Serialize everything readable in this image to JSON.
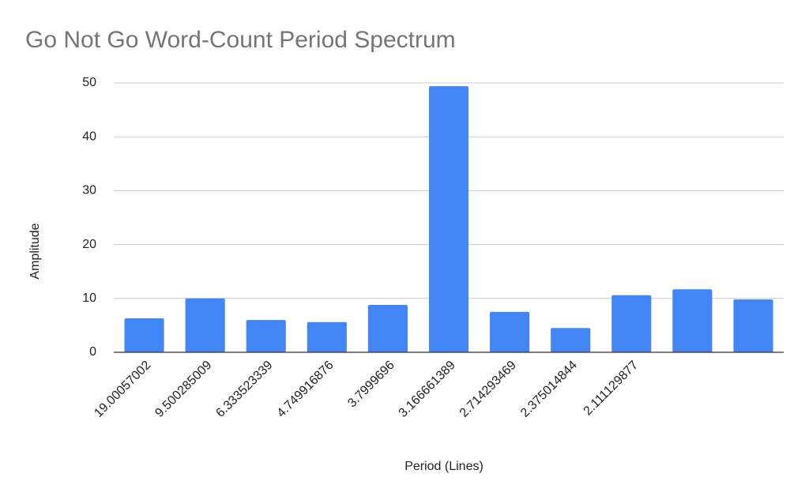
{
  "chart_data": {
    "type": "bar",
    "title": "Go Not Go Word-Count Period Spectrum",
    "x_label": "Period (Lines)",
    "y_label": "Amplitude",
    "categories": [
      "19.00057002",
      "9.500285009",
      "6.333523339",
      "4.749916876",
      "3.7999696",
      "3.166661389",
      "2.714293469",
      "2.375014844",
      "2.111129877",
      null,
      null
    ],
    "values": [
      6.3,
      10.0,
      6.0,
      5.6,
      8.8,
      49.4,
      7.5,
      4.5,
      10.6,
      11.7,
      9.8
    ],
    "color": "#4285f4",
    "ylim": [
      0,
      50
    ],
    "yticks": [
      0,
      10,
      20,
      30,
      40,
      50
    ],
    "grid": true
  }
}
